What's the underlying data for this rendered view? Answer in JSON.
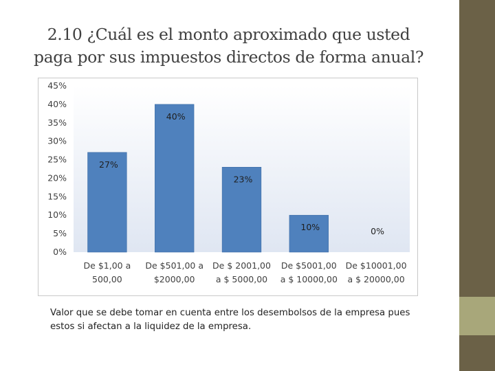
{
  "slide": {
    "title_line1": "2.10 ¿Cuál es el monto aproximado que usted",
    "title_line2": "paga  por sus impuestos directos de forma anual?",
    "note": "Valor que se debe tomar en cuenta entre los desembolsos de la empresa pues estos si afectan a la liquidez de la empresa."
  },
  "colors": {
    "bar": "#4f81bd",
    "bar_edge": "#3d6da6",
    "plot_bg_top": "#ffffff",
    "plot_bg_bottom": "#dfe6f2",
    "side_band": "#6b6147",
    "side_accent": "#a8a77a"
  },
  "chart_data": {
    "type": "bar",
    "title": "",
    "xlabel": "",
    "ylabel": "",
    "ylim": [
      0,
      45
    ],
    "y_ticks": [
      "0%",
      "5%",
      "10%",
      "15%",
      "20%",
      "25%",
      "30%",
      "35%",
      "40%",
      "45%"
    ],
    "grid": false,
    "legend": "none",
    "categories": [
      [
        "De $1,00 a",
        "500,00"
      ],
      [
        "De $501,00 a",
        "$2000,00"
      ],
      [
        "De $ 2001,00",
        "a $ 5000,00"
      ],
      [
        "De $5001,00",
        "a $ 10000,00"
      ],
      [
        "De $10001,00",
        "a $ 20000,00"
      ]
    ],
    "values": [
      27,
      40,
      23,
      10,
      0
    ],
    "data_labels": [
      "27%",
      "40%",
      "23%",
      "10%",
      "0%"
    ]
  }
}
